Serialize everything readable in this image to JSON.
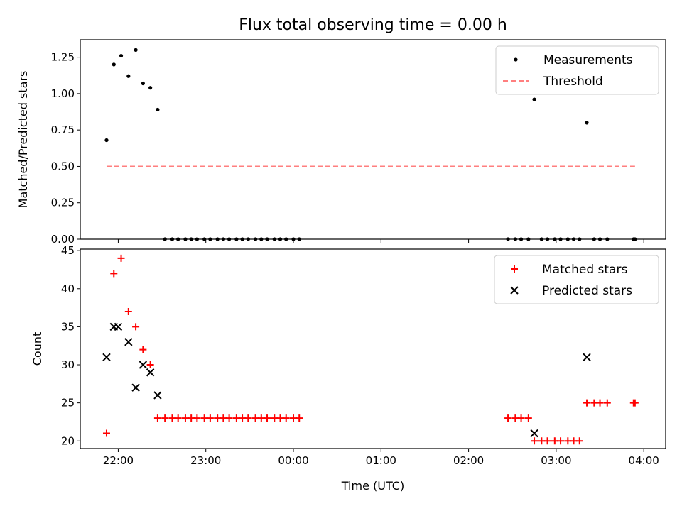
{
  "chart_data": {
    "type": "scatter",
    "title": "Flux total observing time = 0.00 h",
    "xlabel": "Time (UTC)",
    "x_ticks": [
      "22:00",
      "23:00",
      "00:00",
      "01:00",
      "02:00",
      "03:00",
      "04:00"
    ],
    "panels": [
      {
        "ylabel": "Matched/Predicted stars",
        "ylim": [
          0,
          1.37
        ],
        "y_ticks": [
          "0.00",
          "0.25",
          "0.50",
          "0.75",
          "1.00",
          "1.25"
        ],
        "legend": {
          "position": "top-right",
          "entries": [
            "Measurements",
            "Threshold"
          ]
        },
        "series": [
          {
            "name": "Measurements",
            "marker": "dot",
            "color": "#000000",
            "points": [
              [
                "21:52",
                0.68
              ],
              [
                "21:57",
                1.2
              ],
              [
                "22:02",
                1.26
              ],
              [
                "22:07",
                1.12
              ],
              [
                "22:12",
                1.3
              ],
              [
                "22:17",
                1.07
              ],
              [
                "22:22",
                1.04
              ],
              [
                "22:27",
                0.89
              ],
              [
                "22:32",
                0.0
              ],
              [
                "22:37",
                0.0
              ],
              [
                "22:41",
                0.0
              ],
              [
                "22:46",
                0.0
              ],
              [
                "22:50",
                0.0
              ],
              [
                "22:54",
                0.0
              ],
              [
                "22:59",
                0.0
              ],
              [
                "23:03",
                0.0
              ],
              [
                "23:08",
                0.0
              ],
              [
                "23:12",
                0.0
              ],
              [
                "23:16",
                0.0
              ],
              [
                "23:21",
                0.0
              ],
              [
                "23:25",
                0.0
              ],
              [
                "23:29",
                0.0
              ],
              [
                "23:34",
                0.0
              ],
              [
                "23:38",
                0.0
              ],
              [
                "23:42",
                0.0
              ],
              [
                "23:47",
                0.0
              ],
              [
                "23:51",
                0.0
              ],
              [
                "23:55",
                0.0
              ],
              [
                "00:00",
                0.0
              ],
              [
                "00:04",
                0.0
              ],
              [
                "02:27",
                0.0
              ],
              [
                "02:32",
                0.0
              ],
              [
                "02:36",
                0.0
              ],
              [
                "02:41",
                0.0
              ],
              [
                "02:45",
                0.96
              ],
              [
                "02:50",
                0.0
              ],
              [
                "02:54",
                0.0
              ],
              [
                "02:59",
                0.0
              ],
              [
                "03:03",
                0.0
              ],
              [
                "03:08",
                0.0
              ],
              [
                "03:12",
                0.0
              ],
              [
                "03:16",
                0.0
              ],
              [
                "03:21",
                0.8
              ],
              [
                "03:26",
                0.0
              ],
              [
                "03:30",
                0.0
              ],
              [
                "03:35",
                0.0
              ],
              [
                "03:53",
                0.0
              ],
              [
                "03:54",
                0.0
              ]
            ]
          },
          {
            "name": "Threshold",
            "style": "dashed-line",
            "color": "#ff7f7f",
            "points": [
              [
                "21:52",
                0.5
              ],
              [
                "03:54",
                0.5
              ]
            ]
          }
        ]
      },
      {
        "ylabel": "Count",
        "ylim": [
          19,
          45.2
        ],
        "y_ticks": [
          "20",
          "25",
          "30",
          "35",
          "40",
          "45"
        ],
        "legend": {
          "position": "top-right",
          "entries": [
            "Matched stars",
            "Predicted stars"
          ]
        },
        "series": [
          {
            "name": "Matched stars",
            "marker": "plus",
            "color": "#ff0000",
            "points": [
              [
                "21:52",
                21
              ],
              [
                "21:57",
                42
              ],
              [
                "22:02",
                44
              ],
              [
                "22:07",
                37
              ],
              [
                "22:12",
                35
              ],
              [
                "22:17",
                32
              ],
              [
                "22:22",
                30
              ],
              [
                "22:27",
                23
              ],
              [
                "22:32",
                23
              ],
              [
                "22:37",
                23
              ],
              [
                "22:41",
                23
              ],
              [
                "22:46",
                23
              ],
              [
                "22:50",
                23
              ],
              [
                "22:54",
                23
              ],
              [
                "22:59",
                23
              ],
              [
                "23:03",
                23
              ],
              [
                "23:08",
                23
              ],
              [
                "23:12",
                23
              ],
              [
                "23:16",
                23
              ],
              [
                "23:21",
                23
              ],
              [
                "23:25",
                23
              ],
              [
                "23:29",
                23
              ],
              [
                "23:34",
                23
              ],
              [
                "23:38",
                23
              ],
              [
                "23:42",
                23
              ],
              [
                "23:47",
                23
              ],
              [
                "23:51",
                23
              ],
              [
                "23:55",
                23
              ],
              [
                "00:00",
                23
              ],
              [
                "00:04",
                23
              ],
              [
                "02:27",
                23
              ],
              [
                "02:32",
                23
              ],
              [
                "02:36",
                23
              ],
              [
                "02:41",
                23
              ],
              [
                "02:45",
                20
              ],
              [
                "02:50",
                20
              ],
              [
                "02:54",
                20
              ],
              [
                "02:59",
                20
              ],
              [
                "03:03",
                20
              ],
              [
                "03:08",
                20
              ],
              [
                "03:12",
                20
              ],
              [
                "03:16",
                20
              ],
              [
                "03:21",
                25
              ],
              [
                "03:26",
                25
              ],
              [
                "03:30",
                25
              ],
              [
                "03:35",
                25
              ],
              [
                "03:53",
                25
              ],
              [
                "03:54",
                25
              ]
            ]
          },
          {
            "name": "Predicted stars",
            "marker": "x",
            "color": "#000000",
            "points": [
              [
                "21:52",
                31
              ],
              [
                "21:57",
                35
              ],
              [
                "22:00",
                35
              ],
              [
                "22:07",
                33
              ],
              [
                "22:12",
                27
              ],
              [
                "22:17",
                30
              ],
              [
                "22:22",
                29
              ],
              [
                "22:27",
                26
              ],
              [
                "02:45",
                21
              ],
              [
                "03:21",
                31
              ]
            ]
          }
        ]
      }
    ]
  }
}
